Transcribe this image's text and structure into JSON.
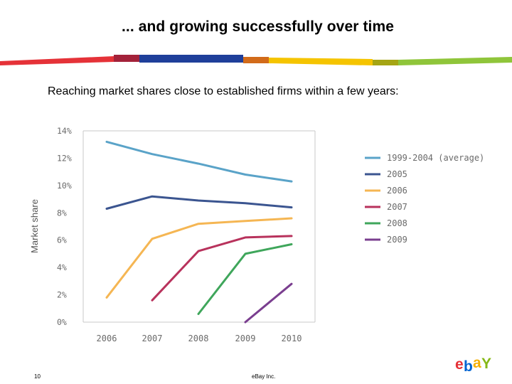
{
  "slide": {
    "title": "... and growing successfully over time",
    "subtitle": "Reaching market shares close to established firms within a few years:",
    "page_number": "10",
    "footer": "eBay Inc."
  },
  "logo": {
    "text": "ebY",
    "colors": [
      "#e53238",
      "#0064d2",
      "#f5af02",
      "#86b817"
    ]
  },
  "chart_data": {
    "type": "line",
    "title": "",
    "xlabel": "",
    "ylabel": "Market share",
    "x": [
      "2006",
      "2007",
      "2008",
      "2009",
      "2010"
    ],
    "ylim": [
      0,
      14
    ],
    "yticks": [
      "0%",
      "2%",
      "4%",
      "6%",
      "8%",
      "10%",
      "12%",
      "14%"
    ],
    "ytick_values": [
      0,
      2,
      4,
      6,
      8,
      10,
      12,
      14
    ],
    "grid": false,
    "legend": "right",
    "series": [
      {
        "name": "1999-2004 (average)",
        "color": "#5aa3c8",
        "values": [
          13.2,
          12.3,
          11.6,
          10.8,
          10.3
        ]
      },
      {
        "name": "2005",
        "color": "#3b5590",
        "values": [
          8.3,
          9.2,
          8.9,
          8.7,
          8.4
        ]
      },
      {
        "name": "2006",
        "color": "#f5b653",
        "values": [
          1.8,
          6.1,
          7.2,
          7.4,
          7.6
        ]
      },
      {
        "name": "2007",
        "color": "#b8325c",
        "values": [
          null,
          1.6,
          5.2,
          6.2,
          6.3
        ]
      },
      {
        "name": "2008",
        "color": "#3fa65b",
        "values": [
          null,
          null,
          0.6,
          5.0,
          5.7
        ]
      },
      {
        "name": "2009",
        "color": "#7a3e8f",
        "values": [
          null,
          null,
          null,
          0.0,
          2.8
        ]
      }
    ]
  }
}
